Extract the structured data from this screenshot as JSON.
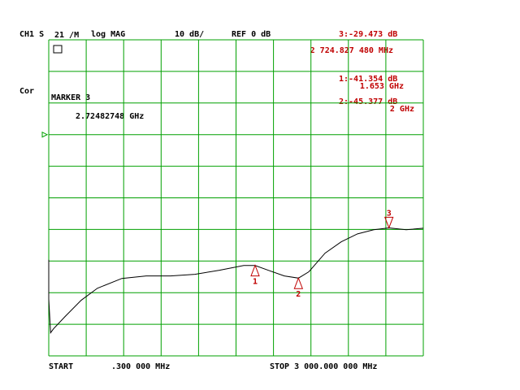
{
  "header": {
    "channel": "CH1 S",
    "param": "21 /M",
    "format": "log MAG",
    "scale": "10 dB/",
    "ref": "REF 0 dB",
    "cor": "Cor"
  },
  "active_marker": {
    "title": "MARKER 3",
    "value": "2.72482748 GHz"
  },
  "readouts": [
    {
      "line1": "3:-29.473 dB",
      "line2": "2 724.827 480 MHz"
    },
    {
      "line1": "1:-41.354 dB",
      "line2": "1.653 GHz"
    },
    {
      "line1": "2:-45.377 dB",
      "line2": "2 GHz"
    }
  ],
  "footer": {
    "start": "START",
    "start_value": ".300 000 MHz",
    "stop": "STOP 3 000.000 000 MHz"
  },
  "chart_data": {
    "type": "line",
    "xlim": [
      0.3,
      3000
    ],
    "ylim": [
      -70,
      30
    ],
    "xticks": [
      0.3,
      300.27,
      600.24,
      900.21,
      1200.18,
      1500.15,
      1800.12,
      2100.09,
      2400.06,
      2700.03,
      3000
    ],
    "yticks": [
      -70,
      -60,
      -50,
      -40,
      -30,
      -20,
      -10,
      0,
      10,
      20,
      30
    ],
    "reference": 0,
    "grid": true,
    "grid_color": "#00a000",
    "series": [
      {
        "color": "#000000",
        "x": [
          0.3,
          0.3,
          15,
          39,
          130,
          260,
          390,
          586,
          781,
          976,
          1171,
          1367,
          1562,
          1653,
          1757,
          1887,
          2000,
          2083,
          2213,
          2343,
          2473,
          2603,
          2725,
          2863,
          3000
        ],
        "values": [
          -39.6,
          -52,
          -62.7,
          -61.4,
          -57.6,
          -52.4,
          -48.6,
          -45.5,
          -44.7,
          -44.7,
          -44.2,
          -42.9,
          -41.4,
          -41.4,
          -42.9,
          -44.7,
          -45.4,
          -43.4,
          -37.5,
          -33.9,
          -31.4,
          -30.1,
          -29.5,
          -30.1,
          -29.6
        ]
      }
    ],
    "marker_color": "#c00000",
    "markers": [
      {
        "name": "1",
        "x": 1653,
        "y": -41.354
      },
      {
        "name": "2",
        "x": 2000,
        "y": -45.377
      },
      {
        "name": "3",
        "x": 2724.827,
        "y": -29.473
      }
    ]
  }
}
